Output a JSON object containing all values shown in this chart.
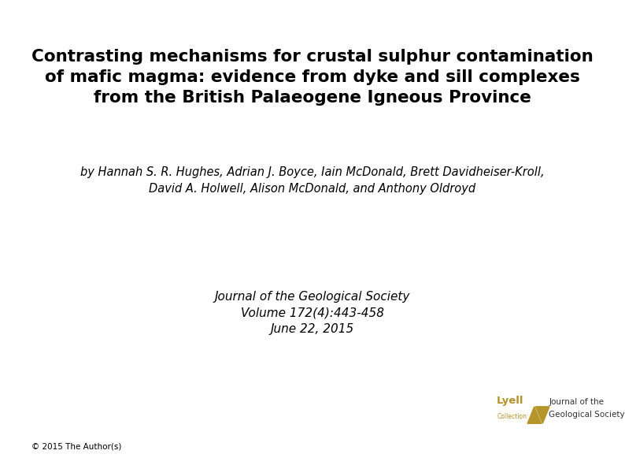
{
  "title_line1": "Contrasting mechanisms for crustal sulphur contamination",
  "title_line2": "of mafic magma: evidence from dyke and sill complexes",
  "title_line3": "from the British Palaeogene Igneous Province",
  "authors_line1": "by Hannah S. R. Hughes, Adrian J. Boyce, Iain McDonald, Brett Davidheiser-Kroll,",
  "authors_line2": "David A. Holwell, Alison McDonald, and Anthony Oldroyd",
  "journal_line1": "Journal of the Geological Society",
  "journal_line2": "Volume 172(4):443-458",
  "journal_line3": "June 22, 2015",
  "copyright": "© 2015 The Author(s)",
  "lyell_text1": "Lyell",
  "lyell_text2": "Collection",
  "lyell_text3": "Journal of the",
  "lyell_text4": "Geological Society",
  "background_color": "#ffffff",
  "title_color": "#000000",
  "author_color": "#000000",
  "journal_color": "#000000",
  "copyright_color": "#000000",
  "lyell_gold_color": "#b5942a",
  "title_fontsize": 15.5,
  "author_fontsize": 10.5,
  "journal_fontsize": 11,
  "copyright_fontsize": 7.5,
  "lyell_name_fontsize": 9.5,
  "lyell_sub_fontsize": 5.5,
  "lyell_journal_fontsize": 7.5
}
